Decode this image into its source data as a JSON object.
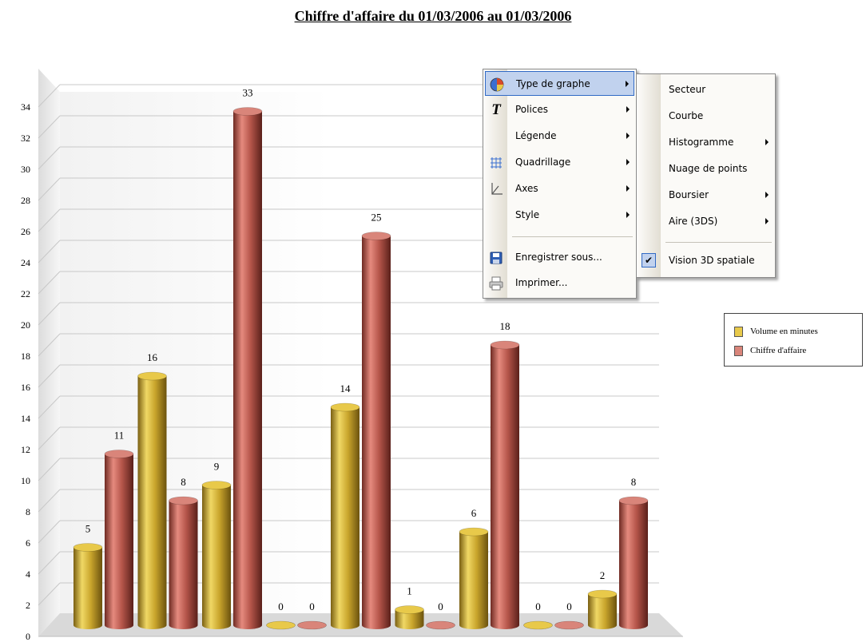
{
  "title": "Chiffre d'affaire du   01/03/2006  au   01/03/2006",
  "colors": {
    "series_volume": "#c9a52c",
    "series_ca": "#b5554a",
    "menu_highlight": "#c1d2ee"
  },
  "chart_data": {
    "type": "bar",
    "title": "Chiffre d'affaire du   01/03/2006  au   01/03/2006",
    "xlabel": "",
    "ylabel": "",
    "ylim": [
      0,
      34
    ],
    "y_ticks": [
      0,
      2,
      4,
      6,
      8,
      10,
      12,
      14,
      16,
      18,
      20,
      22,
      24,
      26,
      28,
      30,
      32,
      34
    ],
    "categories": [
      "",
      "",
      "",
      "",
      "",
      "",
      "",
      "",
      ""
    ],
    "series": [
      {
        "name": "Volume en minutes",
        "values": [
          5,
          16,
          9,
          0,
          14,
          1,
          6,
          0,
          2
        ]
      },
      {
        "name": "Chiffre d'affaire",
        "values": [
          11,
          8,
          33,
          0,
          25,
          0,
          18,
          0,
          8
        ]
      }
    ],
    "grid": true,
    "legend": "right",
    "style": "3d-cylinder"
  },
  "legend": {
    "items": [
      {
        "label": "Volume en minutes",
        "color": "#e8c94a"
      },
      {
        "label": "Chiffre d'affaire",
        "color": "#d9857a"
      }
    ]
  },
  "context_menu": {
    "items": [
      {
        "label": "Type de graphe",
        "icon": "pie-chart-icon",
        "submenu": true,
        "highlighted": true
      },
      {
        "label": "Polices",
        "icon": "font-icon",
        "submenu": true
      },
      {
        "label": "Légende",
        "icon": "",
        "submenu": true
      },
      {
        "label": "Quadrillage",
        "icon": "grid-icon",
        "submenu": true
      },
      {
        "label": "Axes",
        "icon": "axes-icon",
        "submenu": true
      },
      {
        "label": "Style",
        "icon": "",
        "submenu": true
      },
      {
        "label": "Enregistrer sous...",
        "icon": "save-icon",
        "submenu": false
      },
      {
        "label": "Imprimer...",
        "icon": "printer-icon",
        "submenu": false
      }
    ]
  },
  "submenu": {
    "items": [
      {
        "label": "Secteur",
        "submenu": false
      },
      {
        "label": "Courbe",
        "submenu": false
      },
      {
        "label": "Histogramme",
        "submenu": true
      },
      {
        "label": "Nuage de points",
        "submenu": false
      },
      {
        "label": "Boursier",
        "submenu": true
      },
      {
        "label": "Aire (3DS)",
        "submenu": true
      },
      {
        "label": "Vision 3D spatiale",
        "submenu": false,
        "checked": true
      }
    ]
  }
}
